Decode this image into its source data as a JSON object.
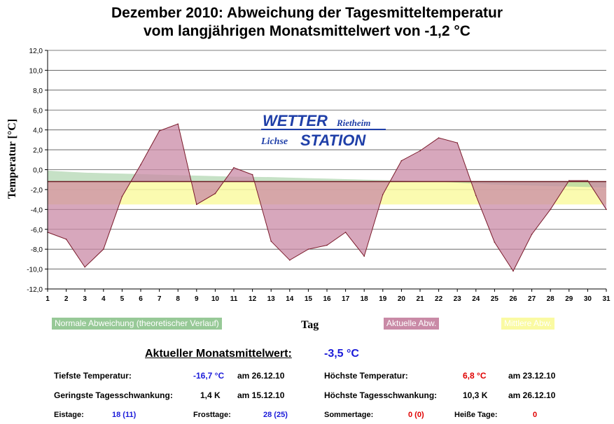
{
  "title": {
    "line1": "Dezember 2010: Abweichung der Tagesmitteltemperatur",
    "line2": "vom langjährigen Monatsmittelwert von -1,2 °C"
  },
  "chart_data": {
    "type": "area",
    "title": "Dezember 2010: Abweichung der Tagesmitteltemperatur vom langjährigen Monatsmittelwert von -1,2 °C",
    "xlabel": "Tag",
    "ylabel": "Temperatur [°C]",
    "ylim": [
      -12,
      12
    ],
    "yticks": [
      "12,0",
      "10,0",
      "8,0",
      "6,0",
      "4,0",
      "2,0",
      "0,0",
      "-2,0",
      "-4,0",
      "-6,0",
      "-8,0",
      "-10,0",
      "-12,0"
    ],
    "ytick_values": [
      12,
      10,
      8,
      6,
      4,
      2,
      0,
      -2,
      -4,
      -6,
      -8,
      -10,
      -12
    ],
    "x": [
      1,
      2,
      3,
      4,
      5,
      6,
      7,
      8,
      9,
      10,
      11,
      12,
      13,
      14,
      15,
      16,
      17,
      18,
      19,
      20,
      21,
      22,
      23,
      24,
      25,
      26,
      27,
      28,
      29,
      30,
      31
    ],
    "grid": true,
    "baseline": -1.2,
    "mean_actual": -3.5,
    "series": [
      {
        "name": "Normale Abweichung (theoretischer Verlauf)",
        "color": "#97c997",
        "values": [
          -0.1,
          -0.2,
          -0.3,
          -0.35,
          -0.4,
          -0.45,
          -0.5,
          -0.55,
          -0.6,
          -0.65,
          -0.7,
          -0.72,
          -0.75,
          -0.8,
          -0.85,
          -0.9,
          -0.95,
          -1.0,
          -1.05,
          -1.1,
          -1.15,
          -1.2,
          -1.3,
          -1.4,
          -1.5,
          -1.55,
          -1.6,
          -1.65,
          -1.7,
          -1.75,
          -1.8
        ]
      },
      {
        "name": "Aktuelle Abw.",
        "color": "#c98aa6",
        "values": [
          -6.3,
          -7.0,
          -9.8,
          -8.0,
          -2.7,
          0.5,
          3.9,
          4.6,
          -3.5,
          -2.4,
          0.2,
          -0.5,
          -7.2,
          -9.1,
          -8.0,
          -7.6,
          -6.3,
          -8.7,
          -2.5,
          0.9,
          1.9,
          3.2,
          2.7,
          -2.6,
          -7.3,
          -10.2,
          -6.5,
          -4.0,
          -1.1,
          -1.1,
          -4.0
        ]
      },
      {
        "name": "Mittlere Abw.",
        "color": "#fafaa2",
        "value": -3.5
      }
    ]
  },
  "legend": {
    "normal": "Normale Abweichung (theoretischer Verlauf)",
    "aktuelle": "Aktuelle Abw.",
    "mittlere": "Mittlere Abw."
  },
  "logo": {
    "wetter": "WETTER",
    "station": "STATION",
    "place1": "Rietheim",
    "place2": "Lichse"
  },
  "stats": {
    "monatsmittel_label": "Aktueller Monatsmittelwert:",
    "monatsmittel_value": "-3,5 °C",
    "tiefste_label": "Tiefste Temperatur:",
    "tiefste_value": "-16,7 °C",
    "tiefste_date": "am 26.12.10",
    "hoechste_label": "Höchste Temperatur:",
    "hoechste_value": "6,8 °C",
    "hoechste_date": "am 23.12.10",
    "geringste_label": "Geringste Tagesschwankung:",
    "geringste_value": "1,4 K",
    "geringste_date": "am 15.12.10",
    "hoechste_schw_label": "Höchste Tagesschwankung:",
    "hoechste_schw_value": "10,3 K",
    "hoechste_schw_date": "am 26.12.10",
    "eistage_label": "Eistage:",
    "eistage_value": "18 (11)",
    "frosttage_label": "Frosttage:",
    "frosttage_value": "28 (25)",
    "sommertage_label": "Sommertage:",
    "sommertage_value": "0 (0)",
    "heisse_label": "Heiße Tage:",
    "heisse_value": "0"
  }
}
